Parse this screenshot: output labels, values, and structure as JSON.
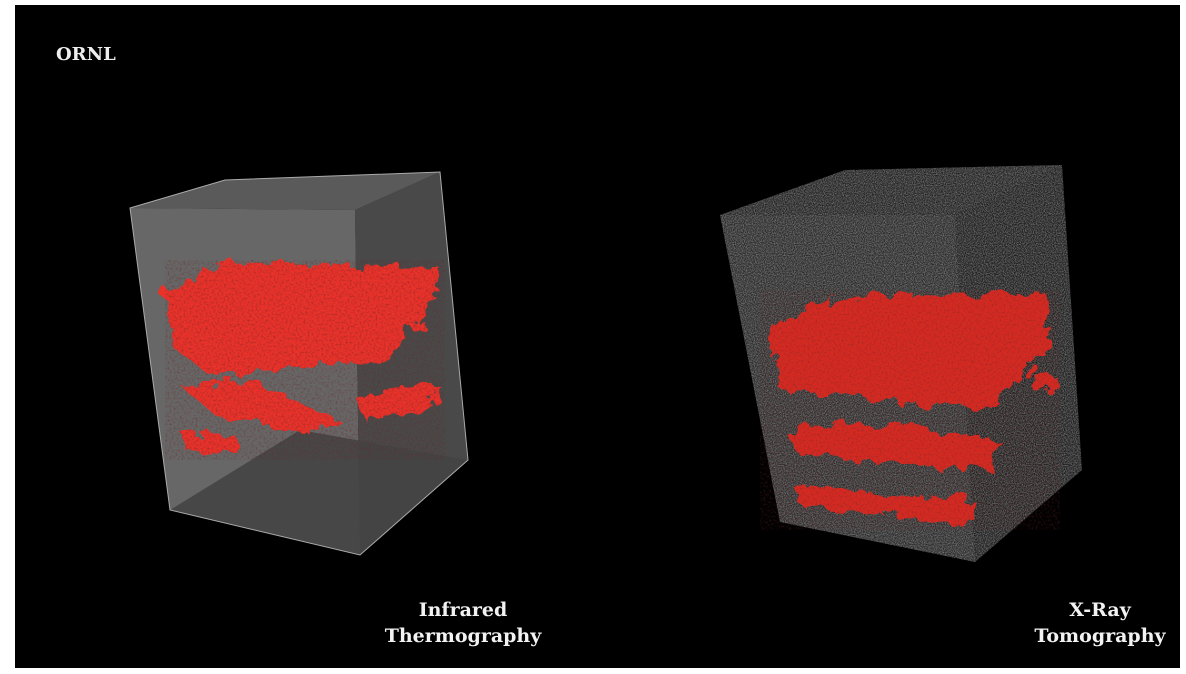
{
  "logo": "ORNL",
  "panels": [
    {
      "label_lines": [
        "Infrared",
        "Thermography"
      ]
    },
    {
      "label_lines": [
        "X-Ray",
        "Tomography"
      ]
    }
  ]
}
